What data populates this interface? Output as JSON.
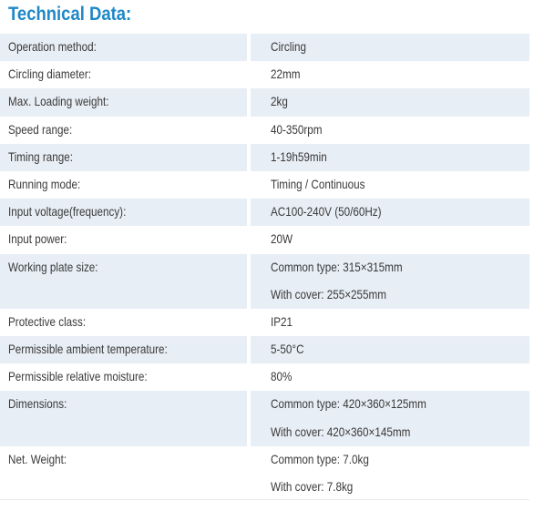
{
  "title": "Technical Data:",
  "rows": [
    {
      "label": "Operation method:",
      "values": [
        "Circling"
      ],
      "shaded": true
    },
    {
      "label": "Circling diameter:",
      "values": [
        "22mm"
      ],
      "shaded": false
    },
    {
      "label": "Max. Loading weight:",
      "values": [
        "2kg"
      ],
      "shaded": true
    },
    {
      "label": "Speed range:",
      "values": [
        "40-350rpm"
      ],
      "shaded": false
    },
    {
      "label": "Timing range:",
      "values": [
        "1-19h59min"
      ],
      "shaded": true
    },
    {
      "label": "Running mode:",
      "values": [
        "Timing / Continuous"
      ],
      "shaded": false
    },
    {
      "label": "Input voltage(frequency):",
      "values": [
        "AC100-240V (50/60Hz)"
      ],
      "shaded": true
    },
    {
      "label": "Input power:",
      "values": [
        "20W"
      ],
      "shaded": false
    },
    {
      "label": "Working plate size:",
      "values": [
        "Common type: 315×315mm",
        "With cover: 255×255mm"
      ],
      "shaded": true
    },
    {
      "label": "Protective class:",
      "values": [
        "IP21"
      ],
      "shaded": false
    },
    {
      "label": "Permissible ambient temperature:",
      "values": [
        "5-50°C"
      ],
      "shaded": true
    },
    {
      "label": "Permissible relative moisture:",
      "values": [
        "80%"
      ],
      "shaded": false
    },
    {
      "label": "Dimensions:",
      "values": [
        "Common type: 420×360×125mm",
        "With cover: 420×360×145mm"
      ],
      "shaded": true
    },
    {
      "label": "Net. Weight:",
      "values": [
        "Common type: 7.0kg",
        "With cover: 7.8kg"
      ],
      "shaded": false
    }
  ]
}
